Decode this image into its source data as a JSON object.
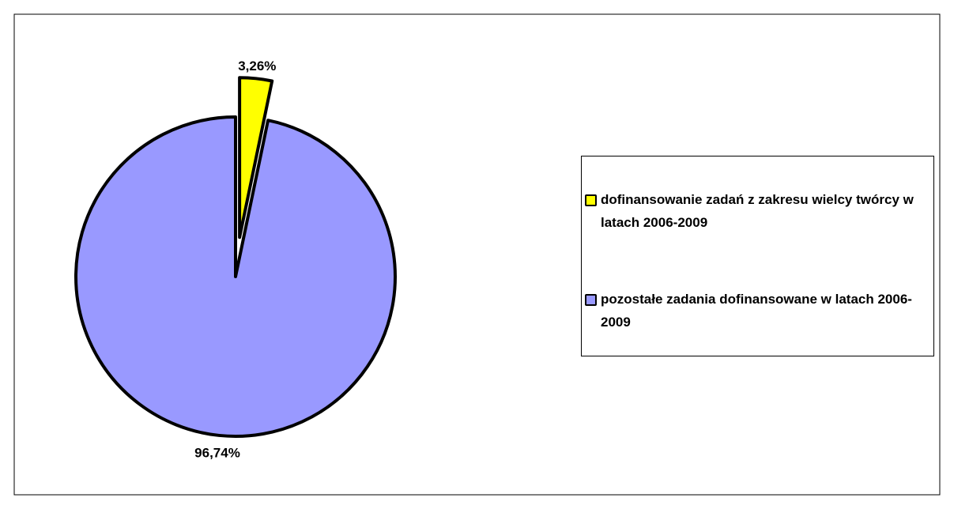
{
  "chart_data": {
    "type": "pie",
    "categories": [
      "dofinansowanie zadań z zakresu wielcy twórcy w latach 2006-2009",
      "pozostałe zadania dofinansowane w latach 2006-2009"
    ],
    "values": [
      3.26,
      96.74
    ],
    "value_labels": [
      "3,26%",
      "96,74%"
    ],
    "colors": [
      "#ffff00",
      "#9999ff"
    ],
    "legend": "right"
  }
}
